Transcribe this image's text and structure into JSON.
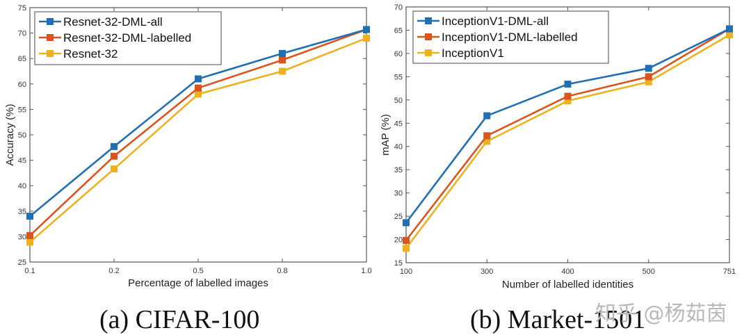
{
  "chart_data": [
    {
      "type": "line",
      "title": "",
      "caption": "(a) CIFAR-100",
      "xlabel": "Percentage of labelled images",
      "ylabel": "Accuracy (%)",
      "categories": [
        "0.1",
        "0.2",
        "0.5",
        "0.8",
        "1.0"
      ],
      "yticks": [
        25,
        30,
        35,
        40,
        45,
        50,
        55,
        60,
        65,
        70,
        75
      ],
      "ylim": [
        25,
        75
      ],
      "grid": false,
      "legend_position": "top-left",
      "series": [
        {
          "name": "Resnet-32-DML-all",
          "color": "#1f6fb2",
          "values": [
            34.0,
            47.7,
            61.0,
            66.0,
            70.7
          ]
        },
        {
          "name": "Resnet-32-DML-labelled",
          "color": "#d9541e",
          "values": [
            30.2,
            45.8,
            59.2,
            64.7,
            70.7
          ]
        },
        {
          "name": "Resnet-32",
          "color": "#edb120",
          "values": [
            28.9,
            43.3,
            58.0,
            62.5,
            69.0
          ]
        }
      ]
    },
    {
      "type": "line",
      "title": "",
      "caption": "(b) Market-1501",
      "xlabel": "Number of labelled identities",
      "ylabel": "mAP (%)",
      "categories": [
        "100",
        "300",
        "400",
        "500",
        "751"
      ],
      "yticks": [
        15,
        20,
        25,
        30,
        35,
        40,
        45,
        50,
        55,
        60,
        65,
        70
      ],
      "ylim": [
        15,
        70
      ],
      "grid": false,
      "legend_position": "top-left",
      "series": [
        {
          "name": "InceptionV1-DML-all",
          "color": "#1f6fb2",
          "values": [
            23.6,
            46.6,
            53.4,
            56.8,
            65.3
          ]
        },
        {
          "name": "InceptionV1-DML-labelled",
          "color": "#d9541e",
          "values": [
            19.8,
            42.3,
            50.8,
            55.0,
            65.3
          ]
        },
        {
          "name": "InceptionV1",
          "color": "#edb120",
          "values": [
            18.1,
            41.1,
            49.8,
            53.9,
            64.0
          ]
        }
      ]
    }
  ],
  "watermark": "知乎 @杨茹茵"
}
